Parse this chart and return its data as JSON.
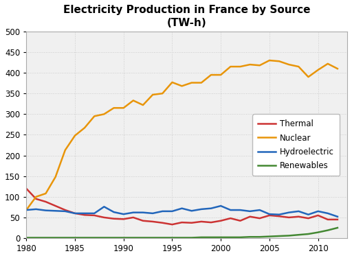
{
  "title": "Electricity Production in France by Source\n(TW-h)",
  "years": [
    1980,
    1981,
    1982,
    1983,
    1984,
    1985,
    1986,
    1987,
    1988,
    1989,
    1990,
    1991,
    1992,
    1993,
    1994,
    1995,
    1996,
    1997,
    1998,
    1999,
    2000,
    2001,
    2002,
    2003,
    2004,
    2005,
    2006,
    2007,
    2008,
    2009,
    2010,
    2011,
    2012
  ],
  "thermal": [
    120,
    95,
    88,
    78,
    68,
    60,
    56,
    55,
    50,
    47,
    46,
    50,
    42,
    40,
    37,
    33,
    38,
    37,
    40,
    38,
    42,
    48,
    42,
    52,
    48,
    55,
    53,
    50,
    52,
    48,
    55,
    45,
    45
  ],
  "nuclear": [
    68,
    100,
    108,
    148,
    213,
    248,
    267,
    295,
    300,
    315,
    315,
    333,
    322,
    347,
    350,
    377,
    368,
    376,
    376,
    395,
    395,
    415,
    415,
    420,
    418,
    430,
    428,
    420,
    415,
    390,
    407,
    422,
    410
  ],
  "hydro": [
    68,
    70,
    67,
    66,
    65,
    60,
    60,
    60,
    76,
    63,
    58,
    62,
    62,
    60,
    65,
    65,
    72,
    66,
    70,
    72,
    78,
    68,
    68,
    65,
    68,
    58,
    57,
    62,
    65,
    57,
    65,
    60,
    52
  ],
  "renewables": [
    1,
    1,
    1,
    1,
    1,
    1,
    1,
    1,
    1,
    1,
    1,
    1,
    1,
    1,
    1,
    1,
    1,
    1,
    2,
    2,
    2,
    2,
    2,
    3,
    3,
    4,
    5,
    6,
    8,
    10,
    14,
    19,
    25
  ],
  "thermal_color": "#cc3333",
  "nuclear_color": "#e8950a",
  "hydro_color": "#2266bb",
  "renewables_color": "#448833",
  "bg_color": "#ffffff",
  "plot_bg_color": "#f0f0f0",
  "grid_color": "#cccccc",
  "ylim": [
    0,
    500
  ],
  "yticks": [
    0,
    50,
    100,
    150,
    200,
    250,
    300,
    350,
    400,
    450,
    500
  ],
  "xticks": [
    1980,
    1985,
    1990,
    1995,
    2000,
    2005,
    2010
  ],
  "xlim": [
    1980,
    2013
  ],
  "legend_labels": [
    "Thermal",
    "Nuclear",
    "Hydroelectric",
    "Renewables"
  ],
  "linewidth": 1.8,
  "title_fontsize": 11,
  "tick_fontsize": 8.5
}
